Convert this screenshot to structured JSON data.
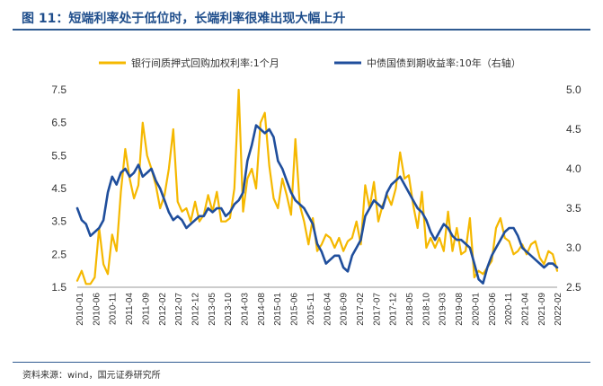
{
  "title": "图 11：短端利率处于低位时，长端利率很难出现大幅上升",
  "source": "资料来源：wind，国元证券研究所",
  "chart_data": {
    "type": "line",
    "left_axis": {
      "ylim": [
        1.5,
        7.5
      ],
      "ticks": [
        "1.5",
        "2.5",
        "3.5",
        "4.5",
        "5.5",
        "6.5",
        "7.5"
      ]
    },
    "right_axis": {
      "ylim": [
        2.5,
        5.0
      ],
      "ticks": [
        "2.5",
        "3.0",
        "3.5",
        "4.0",
        "4.5",
        "5.0"
      ]
    },
    "x_ticks": [
      "2010-01",
      "2010-06",
      "2010-11",
      "2011-04",
      "2011-09",
      "2012-02",
      "2012-07",
      "2012-12",
      "2013-05",
      "2013-10",
      "2014-03",
      "2014-08",
      "2015-01",
      "2015-06",
      "2015-11",
      "2016-04",
      "2016-09",
      "2017-02",
      "2017-07",
      "2017-12",
      "2018-05",
      "2018-10",
      "2019-03",
      "2019-08",
      "2020-01",
      "2020-06",
      "2020-11",
      "2021-04",
      "2021-09",
      "2022-02"
    ],
    "series": [
      {
        "name": "银行间质押式回购加权利率:1个月",
        "axis": "left",
        "color": "#f5b800",
        "points": [
          [
            0,
            1.7
          ],
          [
            1,
            2.0
          ],
          [
            2,
            1.6
          ],
          [
            3,
            1.6
          ],
          [
            4,
            1.8
          ],
          [
            5,
            3.3
          ],
          [
            6,
            2.2
          ],
          [
            7,
            1.9
          ],
          [
            8,
            3.1
          ],
          [
            9,
            2.6
          ],
          [
            10,
            4.4
          ],
          [
            11,
            5.7
          ],
          [
            12,
            4.8
          ],
          [
            13,
            4.2
          ],
          [
            14,
            4.6
          ],
          [
            15,
            6.5
          ],
          [
            16,
            5.5
          ],
          [
            17,
            5.1
          ],
          [
            18,
            4.6
          ],
          [
            19,
            3.9
          ],
          [
            20,
            4.3
          ],
          [
            21,
            5.1
          ],
          [
            22,
            6.3
          ],
          [
            23,
            4.1
          ],
          [
            24,
            3.8
          ],
          [
            25,
            3.9
          ],
          [
            26,
            3.5
          ],
          [
            27,
            4.1
          ],
          [
            28,
            3.5
          ],
          [
            29,
            3.7
          ],
          [
            30,
            4.3
          ],
          [
            31,
            3.8
          ],
          [
            32,
            4.4
          ],
          [
            33,
            3.5
          ],
          [
            34,
            3.5
          ],
          [
            35,
            3.6
          ],
          [
            36,
            4.5
          ],
          [
            37,
            7.5
          ],
          [
            38,
            3.8
          ],
          [
            39,
            4.8
          ],
          [
            40,
            5.1
          ],
          [
            41,
            4.5
          ],
          [
            42,
            6.5
          ],
          [
            43,
            6.8
          ],
          [
            44,
            5.2
          ],
          [
            45,
            4.2
          ],
          [
            46,
            3.9
          ],
          [
            47,
            4.8
          ],
          [
            48,
            4.3
          ],
          [
            49,
            3.7
          ],
          [
            50,
            6.0
          ],
          [
            51,
            4.0
          ],
          [
            52,
            3.5
          ],
          [
            53,
            2.8
          ],
          [
            54,
            3.6
          ],
          [
            55,
            2.6
          ],
          [
            56,
            2.8
          ],
          [
            57,
            3.1
          ],
          [
            58,
            3.0
          ],
          [
            59,
            2.7
          ],
          [
            60,
            3.0
          ],
          [
            61,
            2.6
          ],
          [
            62,
            2.9
          ],
          [
            63,
            3.0
          ],
          [
            64,
            3.5
          ],
          [
            65,
            2.8
          ],
          [
            66,
            4.6
          ],
          [
            67,
            3.9
          ],
          [
            68,
            4.7
          ],
          [
            69,
            3.5
          ],
          [
            70,
            4.0
          ],
          [
            71,
            4.3
          ],
          [
            72,
            4.0
          ],
          [
            73,
            4.5
          ],
          [
            74,
            5.6
          ],
          [
            75,
            4.8
          ],
          [
            76,
            4.9
          ],
          [
            77,
            4.0
          ],
          [
            78,
            3.3
          ],
          [
            79,
            4.4
          ],
          [
            80,
            2.7
          ],
          [
            81,
            3.0
          ],
          [
            82,
            2.7
          ],
          [
            83,
            3.0
          ],
          [
            84,
            2.6
          ],
          [
            85,
            3.8
          ],
          [
            86,
            2.6
          ],
          [
            87,
            3.3
          ],
          [
            88,
            2.5
          ],
          [
            89,
            2.6
          ],
          [
            90,
            3.6
          ],
          [
            91,
            1.8
          ],
          [
            92,
            2.0
          ],
          [
            93,
            1.9
          ],
          [
            94,
            2.1
          ],
          [
            95,
            2.3
          ],
          [
            96,
            3.3
          ],
          [
            97,
            3.6
          ],
          [
            98,
            3.0
          ],
          [
            99,
            2.9
          ],
          [
            100,
            2.5
          ],
          [
            101,
            2.6
          ],
          [
            102,
            2.8
          ],
          [
            103,
            2.5
          ],
          [
            104,
            2.8
          ],
          [
            105,
            2.9
          ],
          [
            106,
            2.4
          ],
          [
            107,
            2.2
          ],
          [
            108,
            2.6
          ],
          [
            109,
            2.5
          ],
          [
            110,
            2.0
          ]
        ]
      },
      {
        "name": "中债国债到期收益率:10年（右轴）",
        "axis": "right",
        "color": "#1f4e9c",
        "points": [
          [
            0,
            3.5
          ],
          [
            1,
            3.35
          ],
          [
            2,
            3.3
          ],
          [
            3,
            3.15
          ],
          [
            4,
            3.2
          ],
          [
            5,
            3.25
          ],
          [
            6,
            3.35
          ],
          [
            7,
            3.7
          ],
          [
            8,
            3.9
          ],
          [
            9,
            3.8
          ],
          [
            10,
            3.95
          ],
          [
            11,
            4.0
          ],
          [
            12,
            3.9
          ],
          [
            13,
            3.95
          ],
          [
            14,
            4.05
          ],
          [
            15,
            3.9
          ],
          [
            16,
            3.95
          ],
          [
            17,
            4.0
          ],
          [
            18,
            3.85
          ],
          [
            19,
            3.75
          ],
          [
            20,
            3.6
          ],
          [
            21,
            3.45
          ],
          [
            22,
            3.35
          ],
          [
            23,
            3.4
          ],
          [
            24,
            3.35
          ],
          [
            25,
            3.25
          ],
          [
            26,
            3.3
          ],
          [
            27,
            3.35
          ],
          [
            28,
            3.4
          ],
          [
            29,
            3.4
          ],
          [
            30,
            3.5
          ],
          [
            31,
            3.45
          ],
          [
            32,
            3.5
          ],
          [
            33,
            3.5
          ],
          [
            34,
            3.4
          ],
          [
            35,
            3.45
          ],
          [
            36,
            3.55
          ],
          [
            37,
            3.6
          ],
          [
            38,
            3.7
          ],
          [
            39,
            4.1
          ],
          [
            40,
            4.3
          ],
          [
            41,
            4.55
          ],
          [
            42,
            4.5
          ],
          [
            43,
            4.45
          ],
          [
            44,
            4.5
          ],
          [
            45,
            4.4
          ],
          [
            46,
            4.1
          ],
          [
            47,
            4.0
          ],
          [
            48,
            3.85
          ],
          [
            49,
            3.7
          ],
          [
            50,
            3.6
          ],
          [
            51,
            3.55
          ],
          [
            52,
            3.5
          ],
          [
            53,
            3.4
          ],
          [
            54,
            3.3
          ],
          [
            55,
            3.05
          ],
          [
            56,
            2.95
          ],
          [
            57,
            2.8
          ],
          [
            58,
            2.85
          ],
          [
            59,
            2.9
          ],
          [
            60,
            2.9
          ],
          [
            61,
            2.75
          ],
          [
            62,
            2.7
          ],
          [
            63,
            2.9
          ],
          [
            64,
            3.0
          ],
          [
            65,
            3.1
          ],
          [
            66,
            3.4
          ],
          [
            67,
            3.5
          ],
          [
            68,
            3.6
          ],
          [
            69,
            3.55
          ],
          [
            70,
            3.5
          ],
          [
            71,
            3.7
          ],
          [
            72,
            3.8
          ],
          [
            73,
            3.85
          ],
          [
            74,
            3.9
          ],
          [
            75,
            3.8
          ],
          [
            76,
            3.7
          ],
          [
            77,
            3.6
          ],
          [
            78,
            3.5
          ],
          [
            79,
            3.45
          ],
          [
            80,
            3.35
          ],
          [
            81,
            3.2
          ],
          [
            82,
            3.1
          ],
          [
            83,
            3.2
          ],
          [
            84,
            3.3
          ],
          [
            85,
            3.25
          ],
          [
            86,
            3.15
          ],
          [
            87,
            3.1
          ],
          [
            88,
            3.1
          ],
          [
            89,
            3.05
          ],
          [
            90,
            3.0
          ],
          [
            91,
            2.8
          ],
          [
            92,
            2.6
          ],
          [
            93,
            2.55
          ],
          [
            94,
            2.75
          ],
          [
            95,
            2.9
          ],
          [
            96,
            3.0
          ],
          [
            97,
            3.1
          ],
          [
            98,
            3.2
          ],
          [
            99,
            3.25
          ],
          [
            100,
            3.25
          ],
          [
            101,
            3.15
          ],
          [
            102,
            3.0
          ],
          [
            103,
            2.95
          ],
          [
            104,
            2.9
          ],
          [
            105,
            2.85
          ],
          [
            106,
            2.8
          ],
          [
            107,
            2.75
          ],
          [
            108,
            2.8
          ],
          [
            109,
            2.8
          ],
          [
            110,
            2.75
          ]
        ]
      }
    ],
    "grid": false,
    "legend_position": "top"
  }
}
